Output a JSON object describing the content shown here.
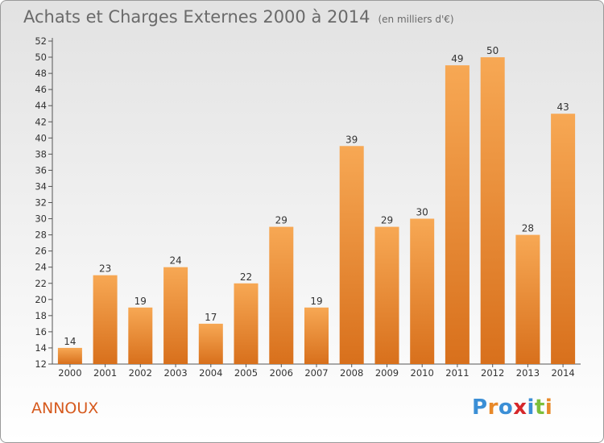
{
  "header": {
    "title": "Achats et Charges Externes 2000 à 2014",
    "unit": "(en milliers d'€)"
  },
  "footer": {
    "commune": "ANNOUX",
    "logo": [
      "P",
      "r",
      "o",
      "x",
      "i",
      "t",
      "i"
    ],
    "logo_colors": [
      "#3b8fd6",
      "#e8892a",
      "#3b8fd6",
      "#d6282b",
      "#3b8fd6",
      "#7cbf3a",
      "#e8892a"
    ]
  },
  "colors": {
    "bar_light": "#f7a854",
    "bar_dark": "#d8701c"
  },
  "chart_data": {
    "type": "bar",
    "categories": [
      "2000",
      "2001",
      "2002",
      "2003",
      "2004",
      "2005",
      "2006",
      "2007",
      "2008",
      "2009",
      "2010",
      "2011",
      "2012",
      "2013",
      "2014"
    ],
    "values": [
      14,
      23,
      19,
      24,
      17,
      22,
      29,
      19,
      39,
      29,
      30,
      49,
      50,
      28,
      43
    ],
    "ylim": [
      12,
      52
    ],
    "yticks": [
      12,
      14,
      16,
      18,
      20,
      22,
      24,
      26,
      28,
      30,
      32,
      34,
      36,
      38,
      40,
      42,
      44,
      46,
      48,
      50,
      52
    ],
    "grid": false,
    "legend": "none"
  }
}
